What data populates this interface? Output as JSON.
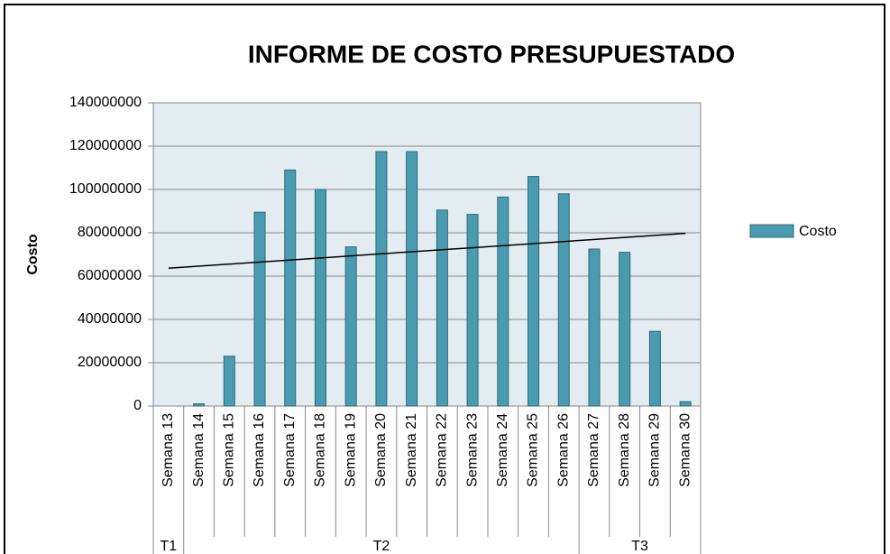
{
  "chart_data": {
    "type": "bar",
    "title": "INFORME DE COSTO PRESUPUESTADO",
    "ylabel": "Costo",
    "categories": [
      "Semana 13",
      "Semana 14",
      "Semana 15",
      "Semana 16",
      "Semana 17",
      "Semana 18",
      "Semana 19",
      "Semana 20",
      "Semana 21",
      "Semana 22",
      "Semana 23",
      "Semana 24",
      "Semana 25",
      "Semana 26",
      "Semana 27",
      "Semana 28",
      "Semana 29",
      "Semana 30"
    ],
    "groups": [
      {
        "label": "T1",
        "count": 1
      },
      {
        "label": "T2",
        "count": 13
      },
      {
        "label": "T3",
        "count": 4
      }
    ],
    "series": [
      {
        "name": "Costo",
        "color": "#4a9bb0",
        "values": [
          0,
          1000000,
          23000000,
          89500000,
          109000000,
          100000000,
          73500000,
          117500000,
          117500000,
          90500000,
          88500000,
          96500000,
          106000000,
          98000000,
          72500000,
          71000000,
          34500000,
          2000000
        ]
      }
    ],
    "trendline": "linear",
    "ylim": [
      0,
      140000000
    ],
    "yticks": [
      0,
      20000000,
      40000000,
      60000000,
      80000000,
      100000000,
      120000000,
      140000000
    ],
    "grid": true,
    "legend": "right"
  }
}
